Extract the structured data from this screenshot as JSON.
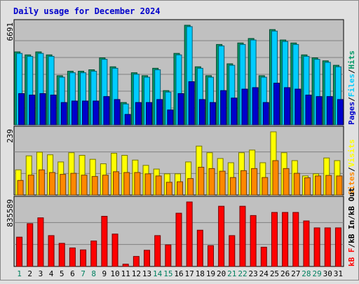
{
  "chart_data": {
    "type": "bar",
    "title": "Daily usage for December 2024",
    "categories": [
      "1",
      "2",
      "3",
      "4",
      "5",
      "6",
      "7",
      "8",
      "9",
      "10",
      "11",
      "12",
      "13",
      "14",
      "15",
      "16",
      "17",
      "18",
      "19",
      "20",
      "21",
      "22",
      "23",
      "24",
      "25",
      "26",
      "27",
      "28",
      "29",
      "30",
      "31"
    ],
    "weekend_days": [
      "1",
      "7",
      "8",
      "14",
      "15",
      "21",
      "22",
      "28",
      "29"
    ],
    "panels": [
      {
        "id": "hits-files-pages",
        "max_label": "6691",
        "ylim": [
          0,
          6691
        ],
        "legend": [
          "Pages",
          "Files",
          "Hits"
        ],
        "series": [
          {
            "name": "Hits",
            "color": "#009966",
            "values": [
              4900,
              4700,
              4900,
              4700,
              3300,
              3600,
              3600,
              3700,
              4500,
              3900,
              1500,
              3500,
              3300,
              3800,
              2300,
              4800,
              6691,
              3900,
              3300,
              5400,
              4100,
              5500,
              5800,
              3300,
              6400,
              5700,
              5500,
              4700,
              4500,
              4300,
              4000
            ]
          },
          {
            "name": "Files",
            "color": "#00ccff",
            "values": [
              4800,
              4600,
              4800,
              4600,
              3200,
              3500,
              3500,
              3600,
              4400,
              3800,
              1400,
              3400,
              3200,
              3700,
              2200,
              4700,
              6600,
              3800,
              3200,
              5300,
              4000,
              5400,
              5700,
              3200,
              6300,
              5600,
              5400,
              4600,
              4400,
              4200,
              3900
            ]
          },
          {
            "name": "Pages",
            "color": "#0000cc",
            "values": [
              2100,
              2000,
              2100,
              2000,
              1500,
              1600,
              1600,
              1600,
              1900,
              1700,
              700,
              1500,
              1500,
              1700,
              1000,
              2100,
              2900,
              1700,
              1500,
              2300,
              1800,
              2400,
              2500,
              1500,
              2800,
              2500,
              2400,
              2000,
              1900,
              1900,
              1700
            ]
          }
        ]
      },
      {
        "id": "visits-sites",
        "max_label": "239",
        "ylim": [
          0,
          239
        ],
        "legend": [
          "Sites",
          "Visits"
        ],
        "series": [
          {
            "name": "Visits",
            "color": "#ffff00",
            "values": [
              95,
              148,
              162,
              152,
              125,
              160,
              150,
              135,
              118,
              158,
              150,
              132,
              112,
              98,
              80,
              80,
              125,
              185,
              160,
              138,
              122,
              160,
              170,
              122,
              239,
              160,
              130,
              72,
              80,
              140,
              130
            ]
          },
          {
            "name": "Sites",
            "color": "#ff8800",
            "values": [
              55,
              75,
              95,
              85,
              78,
              82,
              75,
              70,
              75,
              88,
              85,
              85,
              80,
              72,
              48,
              50,
              62,
              105,
              100,
              90,
              66,
              92,
              100,
              66,
              130,
              100,
              82,
              65,
              72,
              74,
              72
            ]
          }
        ]
      },
      {
        "id": "kbytes",
        "max_label": "835589",
        "ylim": [
          0,
          835589
        ],
        "legend": [
          "kB F",
          "kB In",
          "kB Out"
        ],
        "series": [
          {
            "name": "kB F",
            "color": "#ff0000",
            "values": [
              380000,
              555000,
              630000,
              400000,
              300000,
              240000,
              215000,
              330000,
              650000,
              420000,
              30000,
              130000,
              210000,
              400000,
              280000,
              690000,
              835589,
              470000,
              270000,
              780000,
              400000,
              780000,
              660000,
              250000,
              700000,
              700000,
              700000,
              590000,
              500000,
              500000,
              500000
            ]
          }
        ]
      }
    ]
  }
}
